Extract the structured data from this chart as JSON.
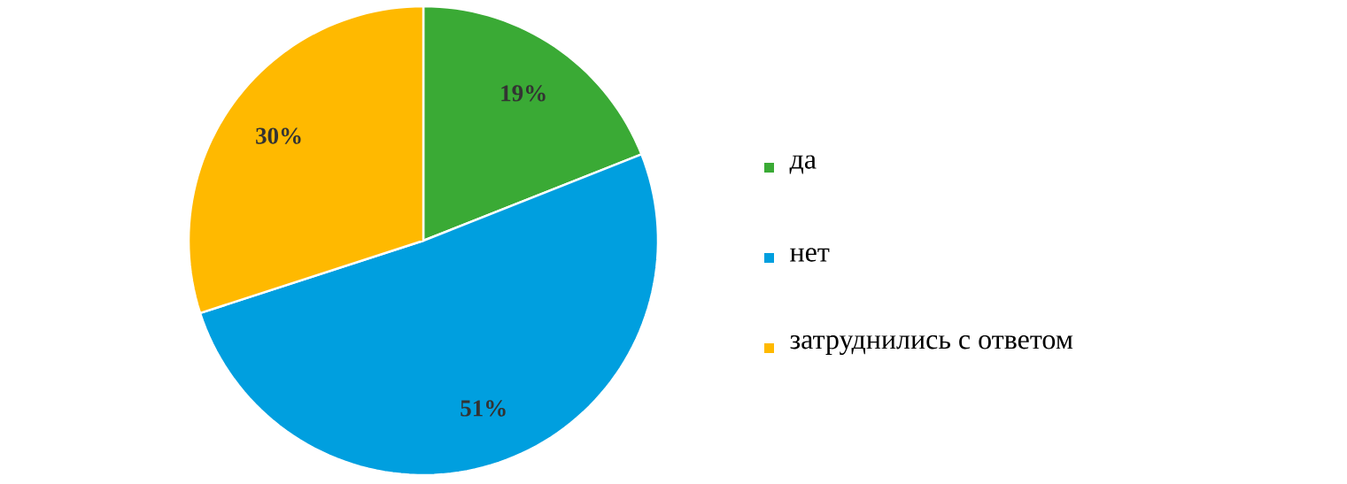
{
  "chart_data": {
    "type": "pie",
    "categories": [
      "да",
      "нет",
      "затруднились с ответом"
    ],
    "values": [
      19,
      51,
      30
    ],
    "colors": [
      "#3aaa35",
      "#009fdf",
      "#ffb900"
    ],
    "value_labels": [
      "19%",
      "51%",
      "30%"
    ],
    "legend": "right"
  }
}
